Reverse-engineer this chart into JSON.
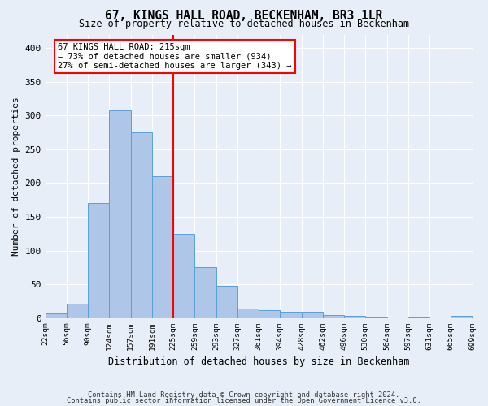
{
  "title": "67, KINGS HALL ROAD, BECKENHAM, BR3 1LR",
  "subtitle": "Size of property relative to detached houses in Beckenham",
  "xlabel": "Distribution of detached houses by size in Beckenham",
  "ylabel": "Number of detached properties",
  "bin_labels": [
    "22sqm",
    "56sqm",
    "90sqm",
    "124sqm",
    "157sqm",
    "191sqm",
    "225sqm",
    "259sqm",
    "293sqm",
    "327sqm",
    "361sqm",
    "394sqm",
    "428sqm",
    "462sqm",
    "496sqm",
    "530sqm",
    "564sqm",
    "597sqm",
    "631sqm",
    "665sqm",
    "699sqm"
  ],
  "bar_heights": [
    7,
    21,
    170,
    308,
    275,
    210,
    125,
    75,
    48,
    14,
    12,
    9,
    9,
    4,
    3,
    1,
    0,
    1,
    0,
    3
  ],
  "bar_color": "#aec6e8",
  "bar_edge_color": "#5a9fd4",
  "vline_x_label": "225sqm",
  "vline_color": "red",
  "annotation_title": "67 KINGS HALL ROAD: 215sqm",
  "annotation_line1": "← 73% of detached houses are smaller (934)",
  "annotation_line2": "27% of semi-detached houses are larger (343) →",
  "ylim": [
    0,
    420
  ],
  "yticks": [
    0,
    50,
    100,
    150,
    200,
    250,
    300,
    350,
    400
  ],
  "footer1": "Contains HM Land Registry data © Crown copyright and database right 2024.",
  "footer2": "Contains public sector information licensed under the Open Government Licence v3.0.",
  "bg_color": "#e8eef7",
  "plot_bg_color": "#e8eef7"
}
